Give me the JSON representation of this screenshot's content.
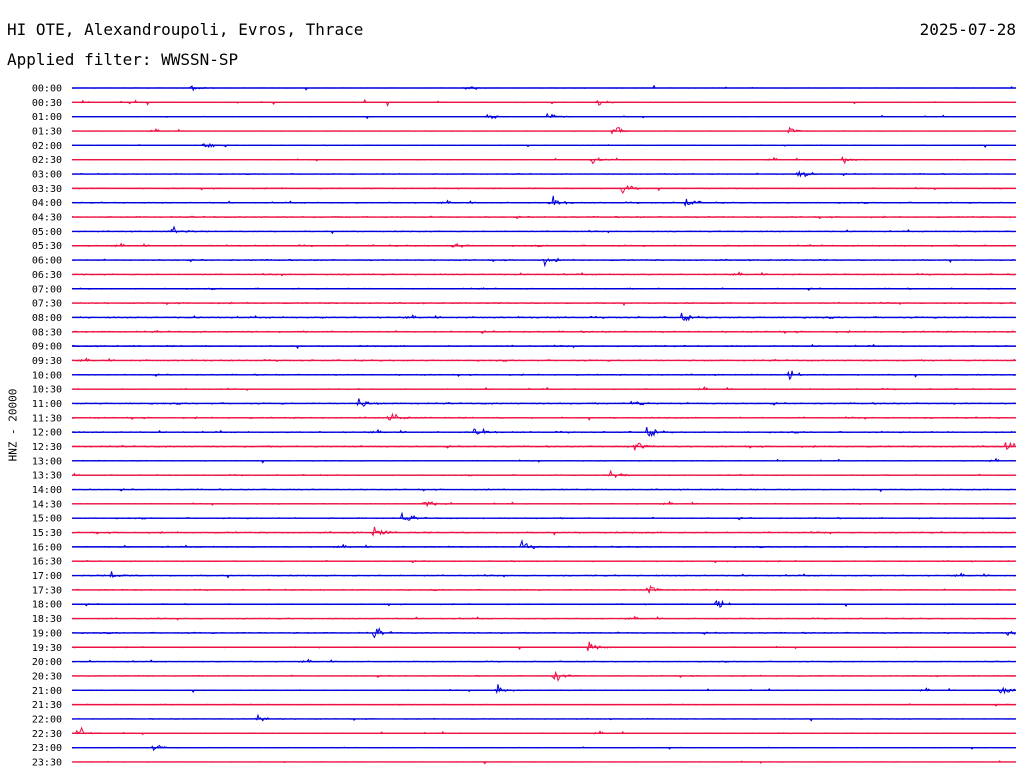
{
  "header": {
    "station": "HI OTE, Alexandroupoli, Evros, Thrace",
    "date": "2025-07-28",
    "filter": "Applied filter: WWSSN-SP"
  },
  "chart_data": {
    "type": "line",
    "chart_kind": "helicorder",
    "channel_label": "HNZ - 20000",
    "row_labels": [
      "00:00",
      "00:30",
      "01:00",
      "01:30",
      "02:00",
      "02:30",
      "03:00",
      "03:30",
      "04:00",
      "04:30",
      "05:00",
      "05:30",
      "06:00",
      "06:30",
      "07:00",
      "07:30",
      "08:00",
      "08:30",
      "09:00",
      "09:30",
      "10:00",
      "10:30",
      "11:00",
      "11:30",
      "12:00",
      "12:30",
      "13:00",
      "13:30",
      "14:00",
      "14:30",
      "15:00",
      "15:30",
      "16:00",
      "16:30",
      "17:00",
      "17:30",
      "18:00",
      "18:30",
      "19:00",
      "19:30",
      "20:00",
      "20:30",
      "21:00",
      "21:30",
      "22:00",
      "22:30",
      "23:00",
      "23:30"
    ],
    "colors": {
      "even_rows": "#0000dd",
      "odd_rows": "#ee1144"
    },
    "row_noise_level": [
      0.2,
      0.3,
      0.2,
      0.2,
      0.3,
      0.3,
      0.5,
      0.6,
      0.7,
      0.7,
      0.6,
      0.8,
      0.7,
      0.7,
      0.7,
      0.7,
      0.9,
      0.9,
      0.8,
      0.8,
      0.7,
      0.6,
      0.8,
      0.8,
      0.8,
      0.8,
      0.5,
      0.6,
      0.6,
      0.5,
      0.7,
      0.8,
      0.7,
      0.6,
      0.7,
      0.6,
      0.6,
      0.6,
      0.7,
      0.5,
      0.5,
      0.5,
      0.5,
      0.4,
      0.4,
      0.4,
      0.3,
      0.2
    ],
    "events": [
      {
        "row": 0,
        "minute": 12.5,
        "amplitude": 6
      },
      {
        "row": 0,
        "minute": 3.8,
        "amplitude": 4
      },
      {
        "row": 1,
        "minute": 16.7,
        "amplitude": 6
      },
      {
        "row": 2,
        "minute": 13.2,
        "amplitude": 8
      },
      {
        "row": 2,
        "minute": 15.1,
        "amplitude": 9
      },
      {
        "row": 3,
        "minute": 17.2,
        "amplitude": 9
      },
      {
        "row": 3,
        "minute": 22.8,
        "amplitude": 6
      },
      {
        "row": 4,
        "minute": 4.2,
        "amplitude": 6
      },
      {
        "row": 5,
        "minute": 16.5,
        "amplitude": 9
      },
      {
        "row": 5,
        "minute": 24.5,
        "amplitude": 7
      },
      {
        "row": 6,
        "minute": 23.1,
        "amplitude": 9
      },
      {
        "row": 7,
        "minute": 17.5,
        "amplitude": 10
      },
      {
        "row": 8,
        "minute": 15.2,
        "amplitude": 10
      },
      {
        "row": 8,
        "minute": 19.5,
        "amplitude": 8
      },
      {
        "row": 10,
        "minute": 3.2,
        "amplitude": 8
      },
      {
        "row": 11,
        "minute": 12.1,
        "amplitude": 6
      },
      {
        "row": 12,
        "minute": 15.0,
        "amplitude": 6
      },
      {
        "row": 16,
        "minute": 19.4,
        "amplitude": 6
      },
      {
        "row": 20,
        "minute": 22.8,
        "amplitude": 7
      },
      {
        "row": 22,
        "minute": 9.1,
        "amplitude": 9
      },
      {
        "row": 22,
        "minute": 17.8,
        "amplitude": 7
      },
      {
        "row": 23,
        "minute": 10.1,
        "amplitude": 9
      },
      {
        "row": 24,
        "minute": 12.8,
        "amplitude": 8
      },
      {
        "row": 24,
        "minute": 18.3,
        "amplitude": 8
      },
      {
        "row": 25,
        "minute": 17.9,
        "amplitude": 9
      },
      {
        "row": 25,
        "minute": 29.7,
        "amplitude": 9
      },
      {
        "row": 27,
        "minute": 17.1,
        "amplitude": 9
      },
      {
        "row": 29,
        "minute": 11.2,
        "amplitude": 7
      },
      {
        "row": 30,
        "minute": 10.5,
        "amplitude": 8
      },
      {
        "row": 31,
        "minute": 9.6,
        "amplitude": 9
      },
      {
        "row": 32,
        "minute": 14.3,
        "amplitude": 7
      },
      {
        "row": 34,
        "minute": 1.2,
        "amplitude": 7
      },
      {
        "row": 35,
        "minute": 18.3,
        "amplitude": 9
      },
      {
        "row": 36,
        "minute": 20.5,
        "amplitude": 7
      },
      {
        "row": 38,
        "minute": 9.6,
        "amplitude": 8
      },
      {
        "row": 38,
        "minute": 29.8,
        "amplitude": 10
      },
      {
        "row": 39,
        "minute": 16.4,
        "amplitude": 9
      },
      {
        "row": 41,
        "minute": 15.3,
        "amplitude": 11
      },
      {
        "row": 42,
        "minute": 13.5,
        "amplitude": 9
      },
      {
        "row": 42,
        "minute": 29.5,
        "amplitude": 11
      },
      {
        "row": 44,
        "minute": 5.9,
        "amplitude": 7
      },
      {
        "row": 45,
        "minute": 0.2,
        "amplitude": 10
      },
      {
        "row": 46,
        "minute": 2.6,
        "amplitude": 5
      }
    ]
  }
}
